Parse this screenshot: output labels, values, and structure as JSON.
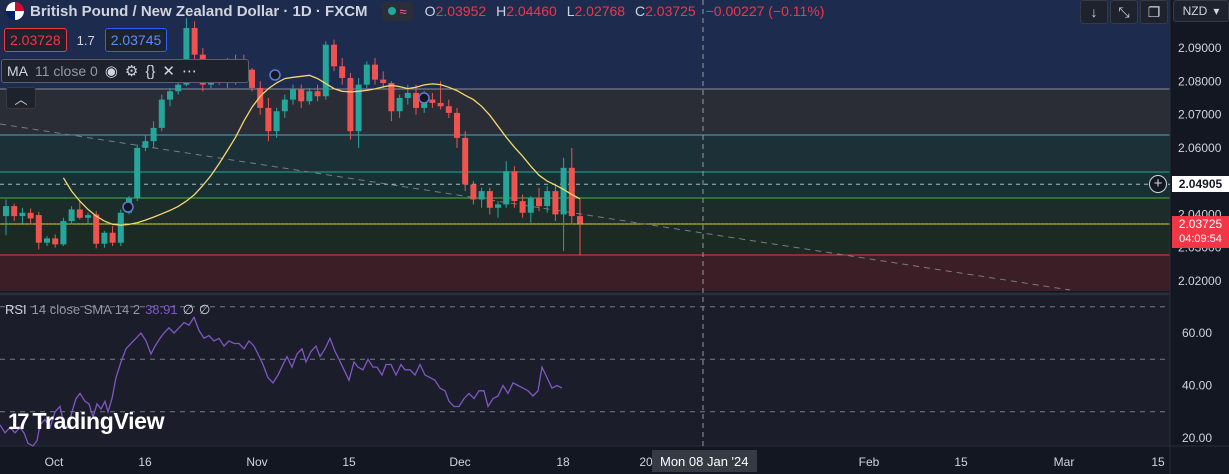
{
  "header": {
    "title": "British Pound / New Zealand Dollar · 1D · FXCM",
    "status_wave": "≈",
    "ohlc": [
      {
        "k": "O",
        "v": "2.03952"
      },
      {
        "k": "H",
        "v": "2.04460"
      },
      {
        "k": "L",
        "v": "2.02768"
      },
      {
        "k": "C",
        "v": "2.03725"
      },
      {
        "k": "",
        "v": "−0.00227 (−0.11%)"
      }
    ],
    "toolbar_icons": [
      "arrow-down-icon",
      "collapse-icon",
      "restore-icon"
    ],
    "currency": "NZD"
  },
  "quote": {
    "bid": "2.03728",
    "spread": "1.7",
    "ask": "2.03745"
  },
  "ma_legend": {
    "name": "MA",
    "params": "11 close 0"
  },
  "rsi_legend": {
    "name": "RSI",
    "params": "14 close SMA 14 2",
    "value": "38.91",
    "na1": "∅",
    "na2": "∅"
  },
  "logo": {
    "mark": "17",
    "text": "TradingView"
  },
  "price_tags": {
    "ref": "2.04905",
    "current": "2.03725",
    "countdown": "04:09:54"
  },
  "crosshair_label": "Mon 08 Jan '24",
  "colors": {
    "up": "#26a69a",
    "down": "#ef5350",
    "ma": "#f5d76e",
    "rsi": "#7e57c2",
    "bg": "#131722"
  },
  "chart_data": {
    "type": "candlestick",
    "symbol": "GBPNZD",
    "interval": "1D",
    "x_ticks": [
      "Oct",
      "16",
      "Nov",
      "15",
      "Dec",
      "18",
      "20",
      "Feb",
      "15",
      "Mar",
      "15"
    ],
    "price_axis": {
      "ticks": [
        "2.09000",
        "2.08000",
        "2.07000",
        "2.06000",
        "2.04905",
        "2.04000",
        "2.03725",
        "2.03000",
        "2.02000"
      ],
      "range": [
        2.0155,
        2.0995
      ]
    },
    "rsi_axis": {
      "ticks": [
        "60.00",
        "40.00",
        "20.00"
      ],
      "range": [
        17,
        80
      ],
      "levels": [
        70,
        50,
        30
      ]
    },
    "candles": [
      [
        2.0395,
        2.0445,
        2.0338,
        2.0425
      ],
      [
        2.0425,
        2.0432,
        2.038,
        2.0395
      ],
      [
        2.0395,
        2.042,
        2.0372,
        2.0405
      ],
      [
        2.0405,
        2.0418,
        2.037,
        2.0388
      ],
      [
        2.0398,
        2.0408,
        2.0295,
        2.0315
      ],
      [
        2.0315,
        2.0335,
        2.0305,
        2.0328
      ],
      [
        2.0328,
        2.034,
        2.03,
        2.031
      ],
      [
        2.031,
        2.039,
        2.0305,
        2.038
      ],
      [
        2.038,
        2.0425,
        2.037,
        2.0415
      ],
      [
        2.0415,
        2.0438,
        2.0385,
        2.039
      ],
      [
        2.039,
        2.0405,
        2.037,
        2.0398
      ],
      [
        2.04,
        2.041,
        2.0298,
        2.0312
      ],
      [
        2.0312,
        2.035,
        2.03,
        2.0345
      ],
      [
        2.0345,
        2.0365,
        2.0305,
        2.0315
      ],
      [
        2.0315,
        2.0415,
        2.0305,
        2.0405
      ],
      [
        2.0405,
        2.0455,
        2.04,
        2.045
      ],
      [
        2.045,
        2.061,
        2.044,
        2.06
      ],
      [
        2.06,
        2.064,
        2.059,
        2.062
      ],
      [
        2.062,
        2.068,
        2.06,
        2.066
      ],
      [
        2.066,
        2.076,
        2.065,
        2.0745
      ],
      [
        2.0745,
        2.078,
        2.0725,
        2.077
      ],
      [
        2.077,
        2.08,
        2.076,
        2.079
      ],
      [
        2.079,
        2.099,
        2.0785,
        2.096
      ],
      [
        2.096,
        2.098,
        2.085,
        2.088
      ],
      [
        2.088,
        2.09,
        2.077,
        2.079
      ],
      [
        2.079,
        2.086,
        2.078,
        2.0815
      ],
      [
        2.0815,
        2.085,
        2.079,
        2.083
      ],
      [
        2.083,
        2.087,
        2.078,
        2.08
      ],
      [
        2.08,
        2.088,
        2.079,
        2.086
      ],
      [
        2.086,
        2.088,
        2.082,
        2.0835
      ],
      [
        2.0835,
        2.084,
        2.077,
        2.078
      ],
      [
        2.078,
        2.08,
        2.07,
        2.072
      ],
      [
        2.072,
        2.075,
        2.062,
        2.065
      ],
      [
        2.065,
        2.072,
        2.063,
        2.071
      ],
      [
        2.071,
        2.076,
        2.069,
        2.0745
      ],
      [
        2.0745,
        2.079,
        2.073,
        2.0775
      ],
      [
        2.0775,
        2.079,
        2.072,
        2.074
      ],
      [
        2.074,
        2.078,
        2.073,
        2.077
      ],
      [
        2.077,
        2.079,
        2.074,
        2.0755
      ],
      [
        2.0755,
        2.092,
        2.0745,
        2.091
      ],
      [
        2.091,
        2.0925,
        2.083,
        2.0845
      ],
      [
        2.0845,
        2.087,
        2.079,
        2.081
      ],
      [
        2.081,
        2.0825,
        2.0625,
        2.065
      ],
      [
        2.065,
        2.081,
        2.06,
        2.079
      ],
      [
        2.079,
        2.086,
        2.078,
        2.085
      ],
      [
        2.085,
        2.087,
        2.079,
        2.0805
      ],
      [
        2.0805,
        2.083,
        2.078,
        2.0795
      ],
      [
        2.0795,
        2.08,
        2.068,
        2.071
      ],
      [
        2.071,
        2.076,
        2.069,
        2.075
      ],
      [
        2.075,
        2.079,
        2.073,
        2.0765
      ],
      [
        2.0765,
        2.079,
        2.07,
        2.072
      ],
      [
        2.072,
        2.077,
        2.0705,
        2.0745
      ],
      [
        2.0745,
        2.0765,
        2.072,
        2.0735
      ],
      [
        2.0735,
        2.08,
        2.0715,
        2.0725
      ],
      [
        2.0725,
        2.0745,
        2.069,
        2.0705
      ],
      [
        2.0705,
        2.072,
        2.06,
        2.063
      ],
      [
        2.063,
        2.065,
        2.047,
        2.049
      ],
      [
        2.049,
        2.05,
        2.043,
        2.0445
      ],
      [
        2.0445,
        2.048,
        2.042,
        2.047
      ],
      [
        2.047,
        2.048,
        2.04,
        2.042
      ],
      [
        2.042,
        2.044,
        2.039,
        2.043
      ],
      [
        2.043,
        2.056,
        2.042,
        2.053
      ],
      [
        2.053,
        2.0545,
        2.042,
        2.044
      ],
      [
        2.044,
        2.046,
        2.039,
        2.0405
      ],
      [
        2.0405,
        2.0455,
        2.0375,
        2.045
      ],
      [
        2.045,
        2.048,
        2.041,
        2.0425
      ],
      [
        2.0425,
        2.0485,
        2.0405,
        2.047
      ],
      [
        2.047,
        2.049,
        2.038,
        2.04
      ],
      [
        2.04,
        2.057,
        2.029,
        2.054
      ],
      [
        2.054,
        2.06,
        2.037,
        2.0395
      ],
      [
        2.0395,
        2.0446,
        2.0277,
        2.0373
      ]
    ],
    "ma": [
      2.051,
      2.047,
      2.044,
      2.0415,
      2.0395,
      2.038,
      2.037,
      2.0368,
      2.037,
      2.0375,
      2.0383,
      2.0392,
      2.0402,
      2.0412,
      2.0424,
      2.044,
      2.046,
      2.0487,
      2.0517,
      2.0553,
      2.0592,
      2.0632,
      2.068,
      2.0722,
      2.0755,
      2.0778,
      2.0795,
      2.0808,
      2.0812,
      2.0815,
      2.0818,
      2.0808,
      2.0793,
      2.0778,
      2.077,
      2.0768,
      2.077,
      2.0773,
      2.0777,
      2.0783,
      2.0788,
      2.0784,
      2.0778,
      2.0782,
      2.0789,
      2.0792,
      2.079,
      2.0782,
      2.0772,
      2.0758,
      2.0745,
      2.0725,
      2.0698,
      2.0665,
      2.0632,
      2.0602,
      2.0575,
      2.0545,
      2.0518,
      2.05,
      2.0488,
      2.0475,
      2.046,
      2.0447
    ]
  },
  "rsi_data": {
    "points": [
      [
        0,
        25
      ],
      [
        5,
        22
      ],
      [
        10,
        24
      ],
      [
        15,
        22
      ],
      [
        20,
        24
      ],
      [
        24,
        22
      ],
      [
        28,
        18
      ],
      [
        33,
        17
      ],
      [
        37,
        19
      ],
      [
        40,
        25
      ],
      [
        45,
        27
      ],
      [
        50,
        24
      ],
      [
        55,
        30
      ],
      [
        60,
        32
      ],
      [
        64,
        25
      ],
      [
        68,
        24
      ],
      [
        72,
        30
      ],
      [
        76,
        35
      ],
      [
        80,
        37
      ],
      [
        85,
        34
      ],
      [
        89,
        33
      ],
      [
        93,
        28
      ],
      [
        97,
        33
      ],
      [
        101,
        31
      ],
      [
        105,
        34
      ],
      [
        108,
        30
      ],
      [
        112,
        35
      ],
      [
        116,
        43
      ],
      [
        121,
        49
      ],
      [
        126,
        54
      ],
      [
        131,
        56
      ],
      [
        136,
        58
      ],
      [
        141,
        60
      ],
      [
        146,
        57
      ],
      [
        151,
        52
      ],
      [
        155,
        55
      ],
      [
        160,
        58
      ],
      [
        164,
        60
      ],
      [
        169,
        62
      ],
      [
        174,
        60
      ],
      [
        179,
        62
      ],
      [
        184,
        64
      ],
      [
        189,
        63
      ],
      [
        194,
        66
      ],
      [
        199,
        61
      ],
      [
        204,
        58
      ],
      [
        209,
        59
      ],
      [
        214,
        57
      ],
      [
        219,
        58
      ],
      [
        224,
        55
      ],
      [
        229,
        57
      ],
      [
        234,
        56
      ],
      [
        239,
        56
      ],
      [
        244,
        54
      ],
      [
        249,
        57
      ],
      [
        254,
        55
      ],
      [
        258,
        52
      ],
      [
        263,
        48
      ],
      [
        268,
        43
      ],
      [
        273,
        41
      ],
      [
        278,
        44
      ],
      [
        283,
        48
      ],
      [
        287,
        51
      ],
      [
        292,
        47
      ],
      [
        297,
        52
      ],
      [
        302,
        54
      ],
      [
        306,
        49
      ],
      [
        311,
        53
      ],
      [
        316,
        55
      ],
      [
        320,
        51
      ],
      [
        325,
        54
      ],
      [
        330,
        58
      ],
      [
        335,
        53
      ],
      [
        339,
        50
      ],
      [
        344,
        46
      ],
      [
        349,
        42
      ],
      [
        354,
        49
      ],
      [
        358,
        47
      ],
      [
        363,
        46
      ],
      [
        368,
        50
      ],
      [
        373,
        47
      ],
      [
        377,
        47
      ],
      [
        382,
        44
      ],
      [
        386,
        48
      ],
      [
        391,
        48
      ],
      [
        396,
        44
      ],
      [
        401,
        48
      ],
      [
        405,
        46
      ],
      [
        410,
        46
      ],
      [
        415,
        44
      ],
      [
        420,
        48
      ],
      [
        425,
        44
      ],
      [
        430,
        43
      ],
      [
        435,
        42
      ],
      [
        440,
        39
      ],
      [
        445,
        38
      ],
      [
        449,
        34
      ],
      [
        454,
        32
      ],
      [
        459,
        32
      ],
      [
        464,
        35
      ],
      [
        469,
        37
      ],
      [
        474,
        35
      ],
      [
        479,
        38
      ],
      [
        484,
        38
      ],
      [
        488,
        32
      ],
      [
        493,
        35
      ],
      [
        498,
        36
      ],
      [
        503,
        40
      ],
      [
        508,
        37
      ],
      [
        513,
        41
      ],
      [
        518,
        40
      ],
      [
        523,
        39
      ],
      [
        528,
        38
      ],
      [
        533,
        36
      ],
      [
        538,
        38
      ],
      [
        542,
        47
      ],
      [
        547,
        43
      ],
      [
        552,
        39
      ],
      [
        557,
        40
      ],
      [
        562,
        39
      ]
    ]
  }
}
